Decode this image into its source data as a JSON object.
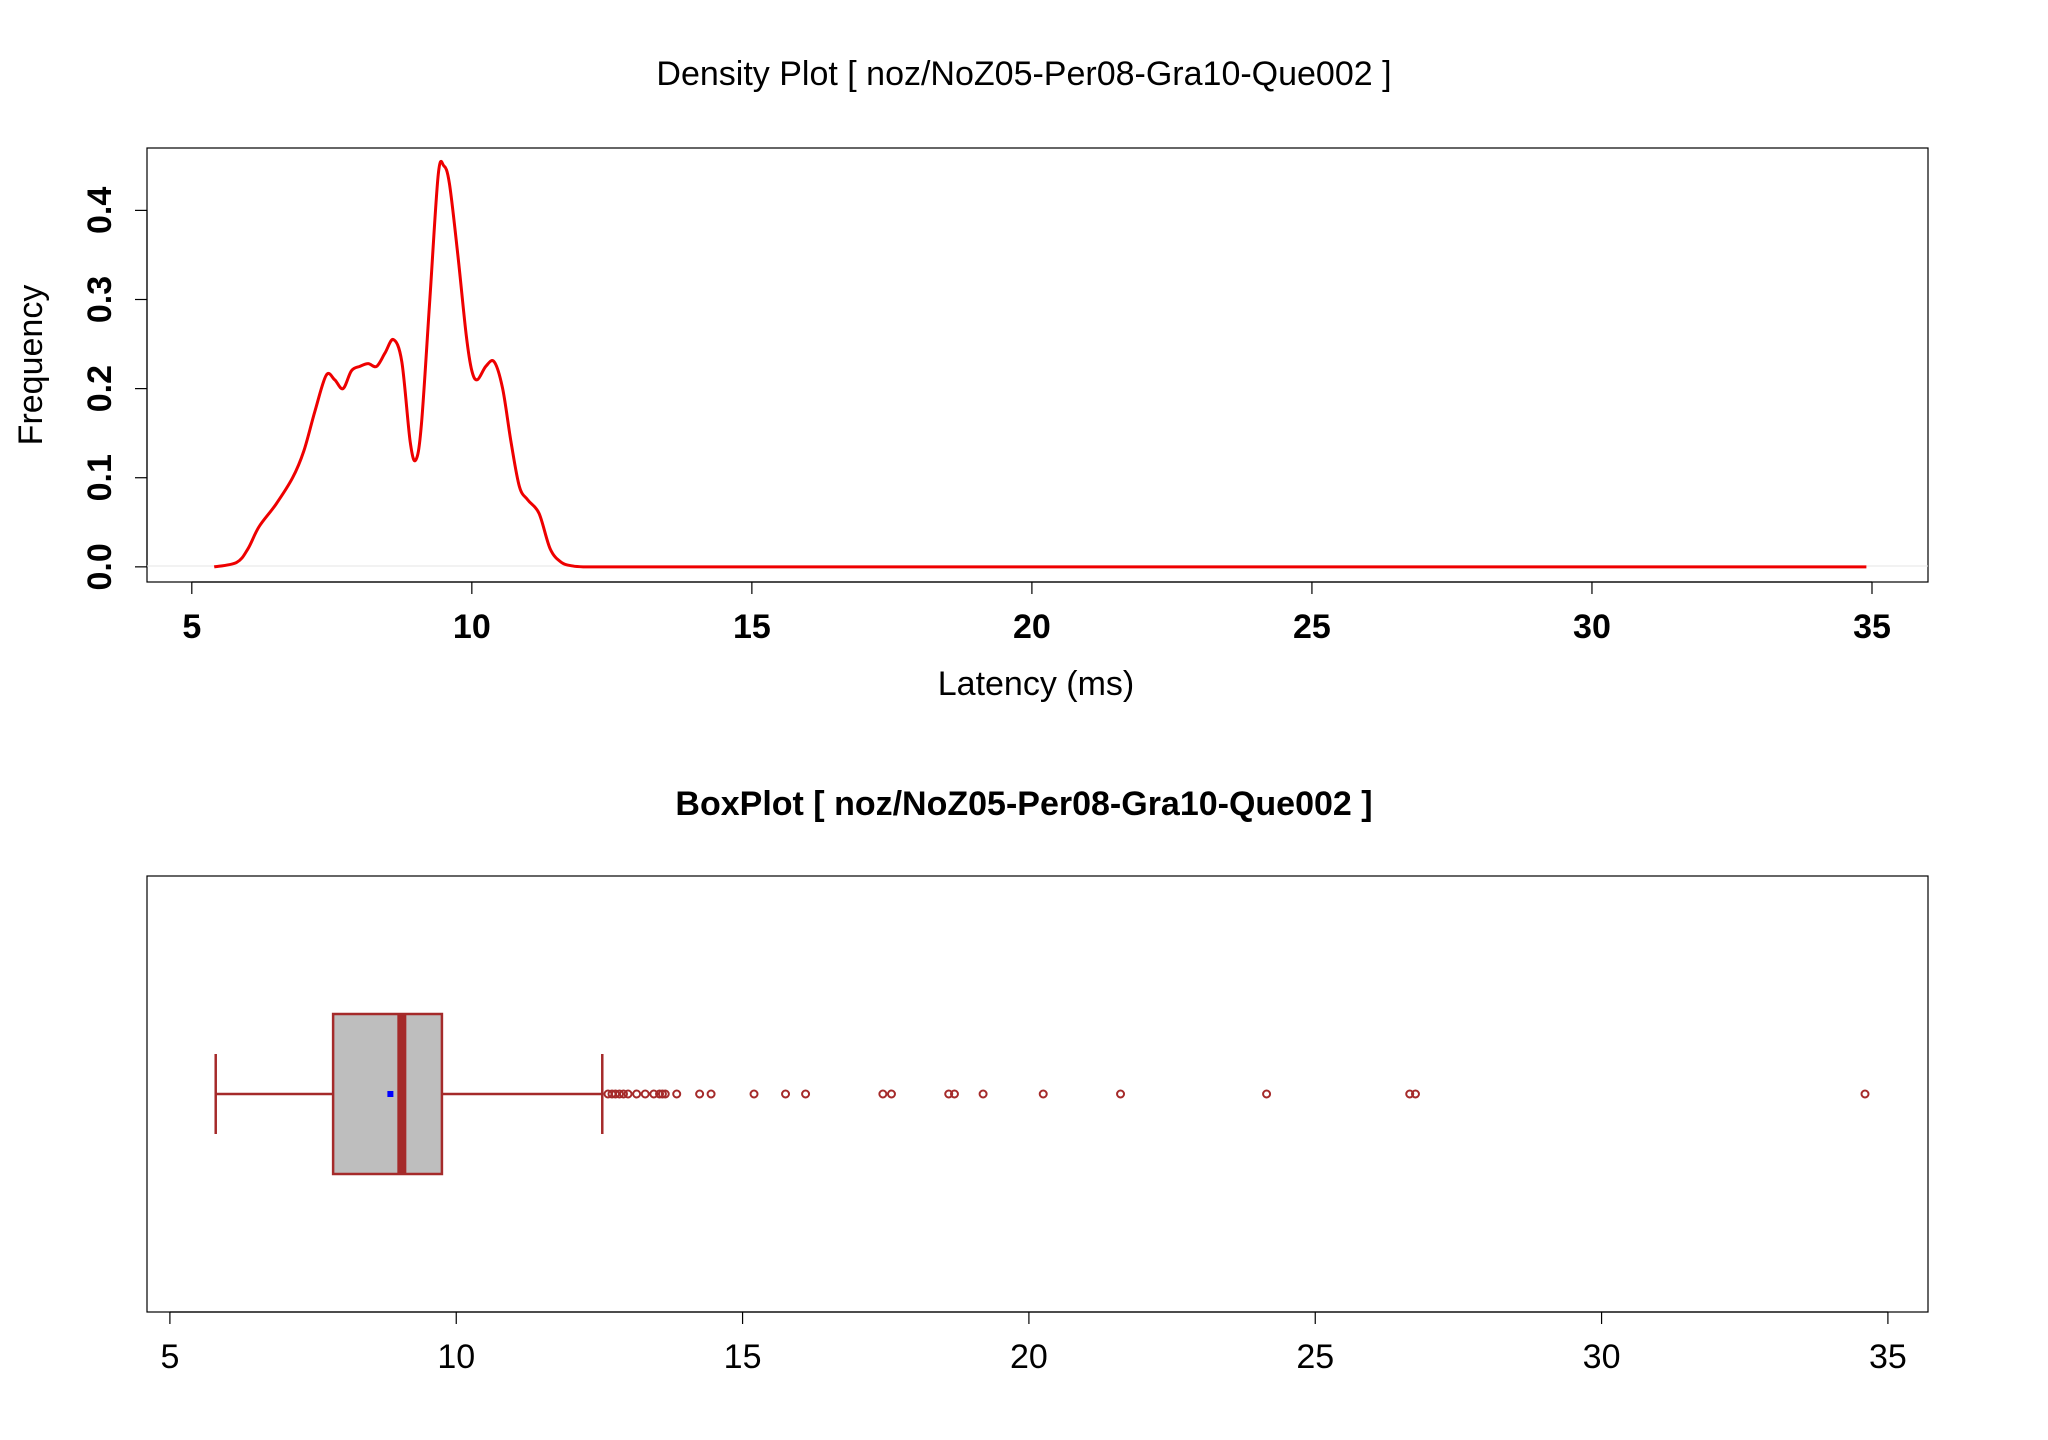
{
  "chart_data": [
    {
      "type": "line",
      "title": "Density Plot [ noz/NoZ05-Per08-Gra10-Que002 ]",
      "xlabel": "Latency (ms)",
      "ylabel": "Frequency",
      "xlim": [
        4.2,
        36.0
      ],
      "ylim": [
        -0.017,
        0.47
      ],
      "x_ticks": [
        "5",
        "10",
        "15",
        "20",
        "25",
        "30",
        "35"
      ],
      "y_ticks": [
        "0.0",
        "0.1",
        "0.2",
        "0.3",
        "0.4"
      ],
      "series": [
        {
          "color": "#ee0000",
          "x": [
            5.4,
            5.8,
            6.0,
            6.2,
            6.5,
            6.8,
            7.0,
            7.2,
            7.4,
            7.55,
            7.7,
            7.85,
            8.0,
            8.15,
            8.3,
            8.45,
            8.6,
            8.75,
            8.9,
            9.0,
            9.1,
            9.25,
            9.4,
            9.5,
            9.6,
            9.75,
            9.9,
            10.0,
            10.1,
            10.25,
            10.4,
            10.55,
            10.7,
            10.85,
            11.0,
            11.2,
            11.4,
            11.6,
            11.8,
            12.0,
            12.5,
            14,
            16,
            20,
            25,
            30,
            34.9
          ],
          "y": [
            0.0,
            0.005,
            0.02,
            0.045,
            0.07,
            0.1,
            0.13,
            0.175,
            0.215,
            0.21,
            0.2,
            0.22,
            0.225,
            0.228,
            0.225,
            0.24,
            0.255,
            0.23,
            0.14,
            0.12,
            0.16,
            0.3,
            0.44,
            0.45,
            0.43,
            0.35,
            0.26,
            0.22,
            0.21,
            0.225,
            0.23,
            0.2,
            0.14,
            0.09,
            0.075,
            0.06,
            0.02,
            0.005,
            0.001,
            0.0,
            0.0,
            0.0,
            0.0,
            0.0,
            0.0,
            0.0,
            0.0
          ]
        }
      ]
    },
    {
      "type": "box",
      "title": "BoxPlot [ noz/NoZ05-Per08-Gra10-Que002 ]",
      "xlim": [
        4.6,
        35.7
      ],
      "x_ticks": [
        "5",
        "10",
        "15",
        "20",
        "25",
        "30",
        "35"
      ],
      "box": {
        "whisker_low": 5.8,
        "q1": 7.85,
        "median": 9.05,
        "q3": 9.75,
        "whisker_high": 12.55,
        "mean": 8.85
      },
      "outliers": [
        12.65,
        12.72,
        12.78,
        12.85,
        12.92,
        13.0,
        13.15,
        13.3,
        13.45,
        13.55,
        13.6,
        13.65,
        13.85,
        14.25,
        14.45,
        15.2,
        15.75,
        16.1,
        17.45,
        17.6,
        18.6,
        18.7,
        19.2,
        20.25,
        21.6,
        24.15,
        26.65,
        26.75,
        34.6
      ],
      "colors": {
        "box_fill": "#bebebe",
        "box_border": "#a52a2a",
        "median": "#a52a2a",
        "mean_marker": "#0000ff",
        "outlier": "#a52a2a"
      }
    }
  ]
}
